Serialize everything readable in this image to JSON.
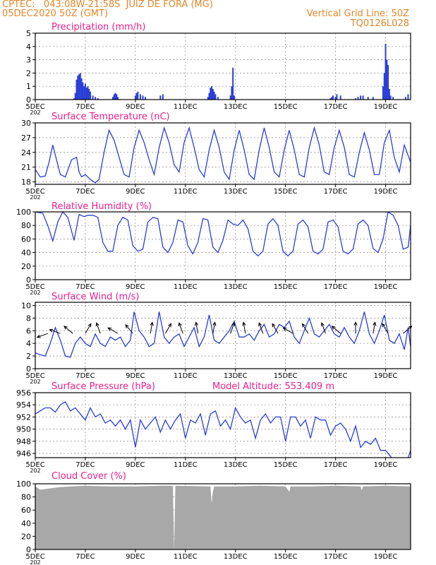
{
  "header": {
    "line1_left": "CPTEC:   043:08W-21:58S  JUIZ DE FORA (MG)",
    "line2_left": "05DEC2020 50Z (GMT)",
    "line1_right": "Vertical Grid Line: 50Z",
    "line2_right": "TQ0126L028",
    "model_altitude": "Model Altitude: 553.409 m",
    "year_stub": "202"
  },
  "colors": {
    "header": "#e6862a",
    "title": "#e8208a",
    "line": "#2a3fd8",
    "cloud": "#a8a8a8"
  },
  "x_axis": {
    "ticks": [
      "5DEC",
      "7DEC",
      "9DEC",
      "11DEC",
      "13DEC",
      "15DEC",
      "17DEC",
      "19DEC"
    ],
    "tick_days": [
      0,
      2,
      4,
      6,
      8,
      10,
      12,
      14
    ],
    "range_days": [
      0,
      15
    ]
  },
  "chart_data": [
    {
      "type": "bar",
      "title": "Precipitation (mm/h)",
      "ylim": [
        0,
        5
      ],
      "yticks": [
        "0",
        "1",
        "2",
        "3",
        "4",
        "5"
      ],
      "x": [
        1.55,
        1.6,
        1.65,
        1.7,
        1.75,
        1.8,
        1.85,
        1.9,
        1.95,
        2.0,
        2.05,
        2.1,
        2.15,
        2.2,
        2.3,
        2.4,
        2.5,
        3.1,
        3.15,
        3.2,
        3.25,
        3.3,
        4.0,
        4.05,
        4.1,
        4.2,
        4.3,
        4.4,
        5.0,
        5.1,
        6.9,
        6.95,
        7.0,
        7.05,
        7.1,
        7.15,
        7.2,
        7.3,
        7.8,
        7.85,
        7.9,
        7.95,
        11.8,
        11.85,
        11.9,
        12.0,
        12.05,
        12.2,
        12.8,
        12.9,
        13.0,
        13.1,
        13.3,
        13.5,
        13.9,
        13.95,
        14.0,
        14.05,
        14.1,
        14.15,
        14.2,
        14.3,
        14.8,
        14.9
      ],
      "values": [
        0.1,
        0.5,
        1.5,
        1.8,
        1.9,
        2.0,
        1.6,
        1.3,
        1.0,
        1.2,
        0.9,
        1.0,
        0.8,
        0.6,
        0.3,
        0.2,
        0.1,
        0.2,
        0.4,
        0.5,
        0.4,
        0.2,
        0.3,
        0.5,
        0.6,
        0.4,
        0.3,
        0.2,
        0.3,
        0.4,
        0.2,
        0.5,
        0.9,
        1.0,
        0.8,
        0.6,
        0.4,
        0.2,
        0.3,
        1.0,
        2.4,
        0.3,
        0.1,
        0.2,
        0.3,
        0.2,
        0.4,
        0.3,
        0.1,
        0.2,
        0.3,
        0.3,
        0.2,
        0.2,
        1.0,
        2.0,
        4.2,
        3.0,
        2.6,
        0.8,
        0.3,
        0.2,
        0.2,
        0.4
      ]
    },
    {
      "type": "line",
      "title": "Surface Temperature (nC)",
      "ylim": [
        17.5,
        30
      ],
      "yticks": [
        "18",
        "21",
        "24",
        "27",
        "30"
      ],
      "ytick_values": [
        18,
        21,
        24,
        27,
        30
      ],
      "x": [
        0,
        0.2,
        0.4,
        0.55,
        0.7,
        0.85,
        1.0,
        1.2,
        1.45,
        1.65,
        1.75,
        1.85,
        2.0,
        2.2,
        2.4,
        2.55,
        2.75,
        2.95,
        3.15,
        3.35,
        3.55,
        3.75,
        3.95,
        4.15,
        4.35,
        4.55,
        4.75,
        4.95,
        5.15,
        5.35,
        5.55,
        5.75,
        5.95,
        6.15,
        6.35,
        6.55,
        6.75,
        6.95,
        7.15,
        7.35,
        7.55,
        7.75,
        7.95,
        8.15,
        8.35,
        8.55,
        8.75,
        8.95,
        9.15,
        9.35,
        9.55,
        9.75,
        9.95,
        10.15,
        10.35,
        10.55,
        10.75,
        10.95,
        11.15,
        11.35,
        11.55,
        11.75,
        11.95,
        12.15,
        12.35,
        12.55,
        12.75,
        12.95,
        13.15,
        13.35,
        13.55,
        13.75,
        13.95,
        14.15,
        14.35,
        14.55,
        14.75,
        15.0
      ],
      "values": [
        20.5,
        19.0,
        19.2,
        22.0,
        25.5,
        22.5,
        19.5,
        19.0,
        22.5,
        23.0,
        20.0,
        19.0,
        19.5,
        18.5,
        17.8,
        18.5,
        24.0,
        28.5,
        26.5,
        23.0,
        19.5,
        19.0,
        25.0,
        28.5,
        26.0,
        22.5,
        19.5,
        25.0,
        29.0,
        26.0,
        21.5,
        20.0,
        26.0,
        29.0,
        25.0,
        20.5,
        19.0,
        24.5,
        28.5,
        25.0,
        20.0,
        18.5,
        24.5,
        28.5,
        24.5,
        19.5,
        18.5,
        24.5,
        29.0,
        25.0,
        20.0,
        19.0,
        24.5,
        28.5,
        24.5,
        19.5,
        19.0,
        25.0,
        29.0,
        25.5,
        20.0,
        19.5,
        25.0,
        28.5,
        25.0,
        19.5,
        19.0,
        24.0,
        28.0,
        24.5,
        19.5,
        19.5,
        26.0,
        28.5,
        23.0,
        20.0,
        25.5,
        22.0
      ]
    },
    {
      "type": "line",
      "title": "Relative Humidity (%)",
      "ylim": [
        0,
        100
      ],
      "yticks": [
        "0",
        "20",
        "40",
        "60",
        "80",
        "100"
      ],
      "ytick_values": [
        0,
        20,
        40,
        60,
        80,
        100
      ],
      "x": [
        0,
        0.3,
        0.5,
        0.7,
        0.9,
        1.1,
        1.3,
        1.55,
        1.75,
        1.95,
        2.1,
        2.3,
        2.5,
        2.7,
        2.9,
        3.1,
        3.3,
        3.5,
        3.7,
        3.9,
        4.1,
        4.3,
        4.5,
        4.7,
        4.9,
        5.1,
        5.3,
        5.5,
        5.7,
        5.9,
        6.1,
        6.3,
        6.5,
        6.7,
        6.9,
        7.1,
        7.3,
        7.5,
        7.7,
        7.9,
        8.1,
        8.3,
        8.5,
        8.7,
        8.9,
        9.1,
        9.3,
        9.5,
        9.7,
        9.9,
        10.1,
        10.3,
        10.5,
        10.7,
        10.9,
        11.1,
        11.3,
        11.5,
        11.7,
        11.9,
        12.1,
        12.3,
        12.5,
        12.7,
        12.9,
        13.1,
        13.3,
        13.5,
        13.7,
        13.9,
        14.1,
        14.3,
        14.5,
        14.7,
        14.9,
        15.0
      ],
      "values": [
        100,
        98,
        80,
        57,
        85,
        100,
        92,
        58,
        96,
        93,
        95,
        95,
        92,
        55,
        42,
        42,
        80,
        92,
        88,
        50,
        42,
        45,
        85,
        92,
        90,
        48,
        40,
        55,
        88,
        85,
        50,
        38,
        55,
        90,
        88,
        48,
        40,
        58,
        88,
        82,
        80,
        88,
        75,
        42,
        35,
        42,
        82,
        90,
        80,
        42,
        35,
        42,
        82,
        88,
        78,
        42,
        38,
        45,
        85,
        88,
        78,
        42,
        38,
        45,
        82,
        88,
        80,
        46,
        40,
        60,
        100,
        95,
        80,
        45,
        48,
        80
      ]
    },
    {
      "type": "line",
      "title": "Surface Wind (m/s)",
      "ylim": [
        0,
        10.5
      ],
      "yticks": [
        "0",
        "2",
        "4",
        "6",
        "8",
        "10"
      ],
      "ytick_values": [
        0,
        2,
        4,
        6,
        8,
        10
      ],
      "x": [
        0,
        0.2,
        0.4,
        0.6,
        0.8,
        1.0,
        1.2,
        1.4,
        1.6,
        1.8,
        2.0,
        2.2,
        2.4,
        2.6,
        2.8,
        3.0,
        3.2,
        3.4,
        3.6,
        3.8,
        3.95,
        4.15,
        4.35,
        4.55,
        4.75,
        4.95,
        5.15,
        5.35,
        5.55,
        5.75,
        5.95,
        6.15,
        6.35,
        6.55,
        6.75,
        6.95,
        7.15,
        7.35,
        7.55,
        7.75,
        7.95,
        8.15,
        8.35,
        8.55,
        8.75,
        8.95,
        9.15,
        9.35,
        9.55,
        9.75,
        9.95,
        10.15,
        10.35,
        10.55,
        10.75,
        10.95,
        11.15,
        11.35,
        11.55,
        11.75,
        11.95,
        12.15,
        12.35,
        12.55,
        12.75,
        12.95,
        13.15,
        13.35,
        13.55,
        13.75,
        13.95,
        14.15,
        14.35,
        14.55,
        14.75,
        14.9,
        15.0
      ],
      "values": [
        2.5,
        2.2,
        2.0,
        4.0,
        6.5,
        4.5,
        2.0,
        1.8,
        4.0,
        5.0,
        4.0,
        3.5,
        5.5,
        4.0,
        3.5,
        5.0,
        4.5,
        5.0,
        3.5,
        4.5,
        9.0,
        6.0,
        5.0,
        3.5,
        4.0,
        9.0,
        5.0,
        4.0,
        5.0,
        5.5,
        3.5,
        5.0,
        6.5,
        3.5,
        5.0,
        8.5,
        4.5,
        4.0,
        5.0,
        6.0,
        7.5,
        5.0,
        5.0,
        5.5,
        4.5,
        6.0,
        7.0,
        5.0,
        5.5,
        7.0,
        6.5,
        7.5,
        5.0,
        4.0,
        6.0,
        8.0,
        5.5,
        5.0,
        6.0,
        7.0,
        5.5,
        5.0,
        6.5,
        5.0,
        4.0,
        6.0,
        9.0,
        5.5,
        4.0,
        6.0,
        8.5,
        4.5,
        4.0,
        5.5,
        3.0,
        6.5,
        3.5
      ],
      "barbs_x": [
        0.5,
        1.0,
        1.5,
        2.0,
        2.6,
        3.3,
        3.9,
        4.6,
        5.2,
        5.9,
        6.5,
        7.1,
        7.8,
        8.4,
        9.1,
        9.7,
        10.3,
        10.9,
        11.6,
        12.2,
        12.8,
        13.5,
        14.1,
        14.7
      ],
      "barbs_dir_deg": [
        160,
        200,
        220,
        300,
        250,
        210,
        230,
        280,
        300,
        250,
        260,
        280,
        290,
        260,
        250,
        240,
        210,
        240,
        250,
        220,
        270,
        280,
        240,
        320
      ]
    },
    {
      "type": "line",
      "title": "Surface Pressure (hPa)",
      "ylim": [
        945.3,
        956
      ],
      "yticks": [
        "946",
        "948",
        "950",
        "952",
        "954",
        "956"
      ],
      "ytick_values": [
        946,
        948,
        950,
        952,
        954,
        956
      ],
      "x": [
        0,
        0.2,
        0.4,
        0.6,
        0.8,
        1.0,
        1.2,
        1.4,
        1.6,
        1.8,
        2.0,
        2.2,
        2.4,
        2.6,
        2.8,
        3.0,
        3.2,
        3.4,
        3.6,
        3.8,
        4.0,
        4.2,
        4.4,
        4.6,
        4.8,
        5.0,
        5.2,
        5.4,
        5.6,
        5.8,
        6.0,
        6.2,
        6.4,
        6.6,
        6.8,
        7.0,
        7.2,
        7.4,
        7.6,
        7.8,
        8.0,
        8.2,
        8.4,
        8.6,
        8.8,
        9.0,
        9.2,
        9.4,
        9.6,
        9.8,
        10.0,
        10.2,
        10.4,
        10.6,
        10.8,
        11.0,
        11.2,
        11.4,
        11.6,
        11.8,
        12.0,
        12.2,
        12.4,
        12.6,
        12.8,
        13.0,
        13.2,
        13.4,
        13.6,
        13.8,
        14.0,
        14.2,
        14.4,
        14.6,
        14.8,
        15.0
      ],
      "values": [
        952.5,
        953,
        953.5,
        953.5,
        952.8,
        954.0,
        954.5,
        953.0,
        953.5,
        952.5,
        951.5,
        953.5,
        952.0,
        952.5,
        951.0,
        951.5,
        950.5,
        951.5,
        950.0,
        951.5,
        947.0,
        951.5,
        950.0,
        951.0,
        952.0,
        949.5,
        951.5,
        950.0,
        951.5,
        952.5,
        948.5,
        951.5,
        951.0,
        952.5,
        949.0,
        952.5,
        953.0,
        950.5,
        951.5,
        950.0,
        953.5,
        952.0,
        951.0,
        951.5,
        948.5,
        951.5,
        952.5,
        951.0,
        952.0,
        952.0,
        948.0,
        952.0,
        952.0,
        950.5,
        951.5,
        948.5,
        952.0,
        951.5,
        951.5,
        949.0,
        950.5,
        951.0,
        950.0,
        948.0,
        950.5,
        947.0,
        948.0,
        947.5,
        948.5,
        946.5,
        946.5,
        945.5,
        944.5,
        944.0,
        944.0,
        946.5
      ]
    },
    {
      "type": "area",
      "title": "Cloud Cover (%)",
      "ylim": [
        0,
        100
      ],
      "yticks": [
        "0",
        "20",
        "40",
        "60",
        "80",
        "100"
      ],
      "ytick_values": [
        0,
        20,
        40,
        60,
        80,
        100
      ],
      "x": [
        0,
        0.2,
        1.0,
        2.0,
        3.0,
        4.0,
        5.0,
        5.5,
        5.55,
        5.6,
        7.0,
        7.05,
        7.1,
        7.15,
        8.0,
        9.0,
        10.0,
        10.15,
        10.2,
        11.0,
        12.0,
        13.0,
        13.05,
        13.1,
        14.0,
        15.0
      ],
      "values": [
        96,
        91,
        95,
        97,
        96,
        96,
        97,
        97,
        0,
        97,
        96,
        70,
        88,
        96,
        96,
        97,
        96,
        88,
        96,
        96,
        97,
        96,
        90,
        96,
        97,
        96
      ]
    }
  ]
}
